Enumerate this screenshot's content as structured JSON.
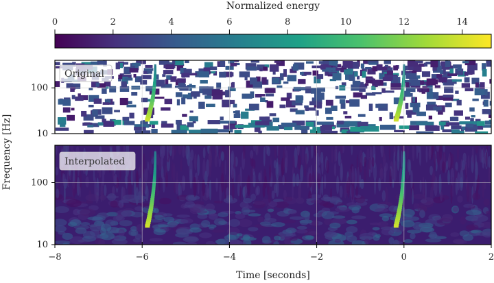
{
  "chart_data": [
    {
      "type": "colorbar",
      "title": "Normalized energy",
      "range": [
        0,
        15
      ],
      "ticks": [
        "0",
        "2",
        "4",
        "6",
        "8",
        "10",
        "12",
        "14"
      ],
      "tick_values": [
        0,
        2,
        4,
        6,
        8,
        10,
        12,
        14
      ],
      "colormap": [
        "#440154",
        "#46327e",
        "#365c8d",
        "#277f8e",
        "#1fa187",
        "#4ac16d",
        "#a0da39",
        "#fde725"
      ]
    },
    {
      "type": "heatmap",
      "panel_label": "Original",
      "xlim": [
        -8,
        2
      ],
      "ylim": [
        10,
        400
      ],
      "yscale": "log",
      "ytick_values": [
        10,
        100
      ],
      "ytick_labels": [
        "10",
        "100"
      ],
      "background": "#ffffff",
      "chirps": [
        {
          "t": -5.7,
          "f_low": 20,
          "f_high": 300,
          "energy": 14
        },
        {
          "t": 0.0,
          "f_low": 20,
          "f_high": 300,
          "energy": 14
        }
      ]
    },
    {
      "type": "heatmap",
      "panel_label": "Interpolated",
      "xlim": [
        -8,
        2
      ],
      "ylim": [
        10,
        400
      ],
      "yscale": "log",
      "ytick_values": [
        10,
        100
      ],
      "ytick_labels": [
        "10",
        "100"
      ],
      "background": "#3b1d6e",
      "chirps": [
        {
          "t": -5.7,
          "f_low": 20,
          "f_high": 300,
          "energy": 14
        },
        {
          "t": 0.0,
          "f_low": 20,
          "f_high": 300,
          "energy": 14
        }
      ]
    }
  ],
  "xaxis": {
    "label": "Time [seconds]",
    "tick_values": [
      -8,
      -6,
      -4,
      -2,
      0,
      2
    ],
    "tick_labels": [
      "−8",
      "−6",
      "−4",
      "−2",
      "0",
      "2"
    ]
  },
  "yaxis": {
    "label": "Frequency [Hz]"
  },
  "grid": true
}
